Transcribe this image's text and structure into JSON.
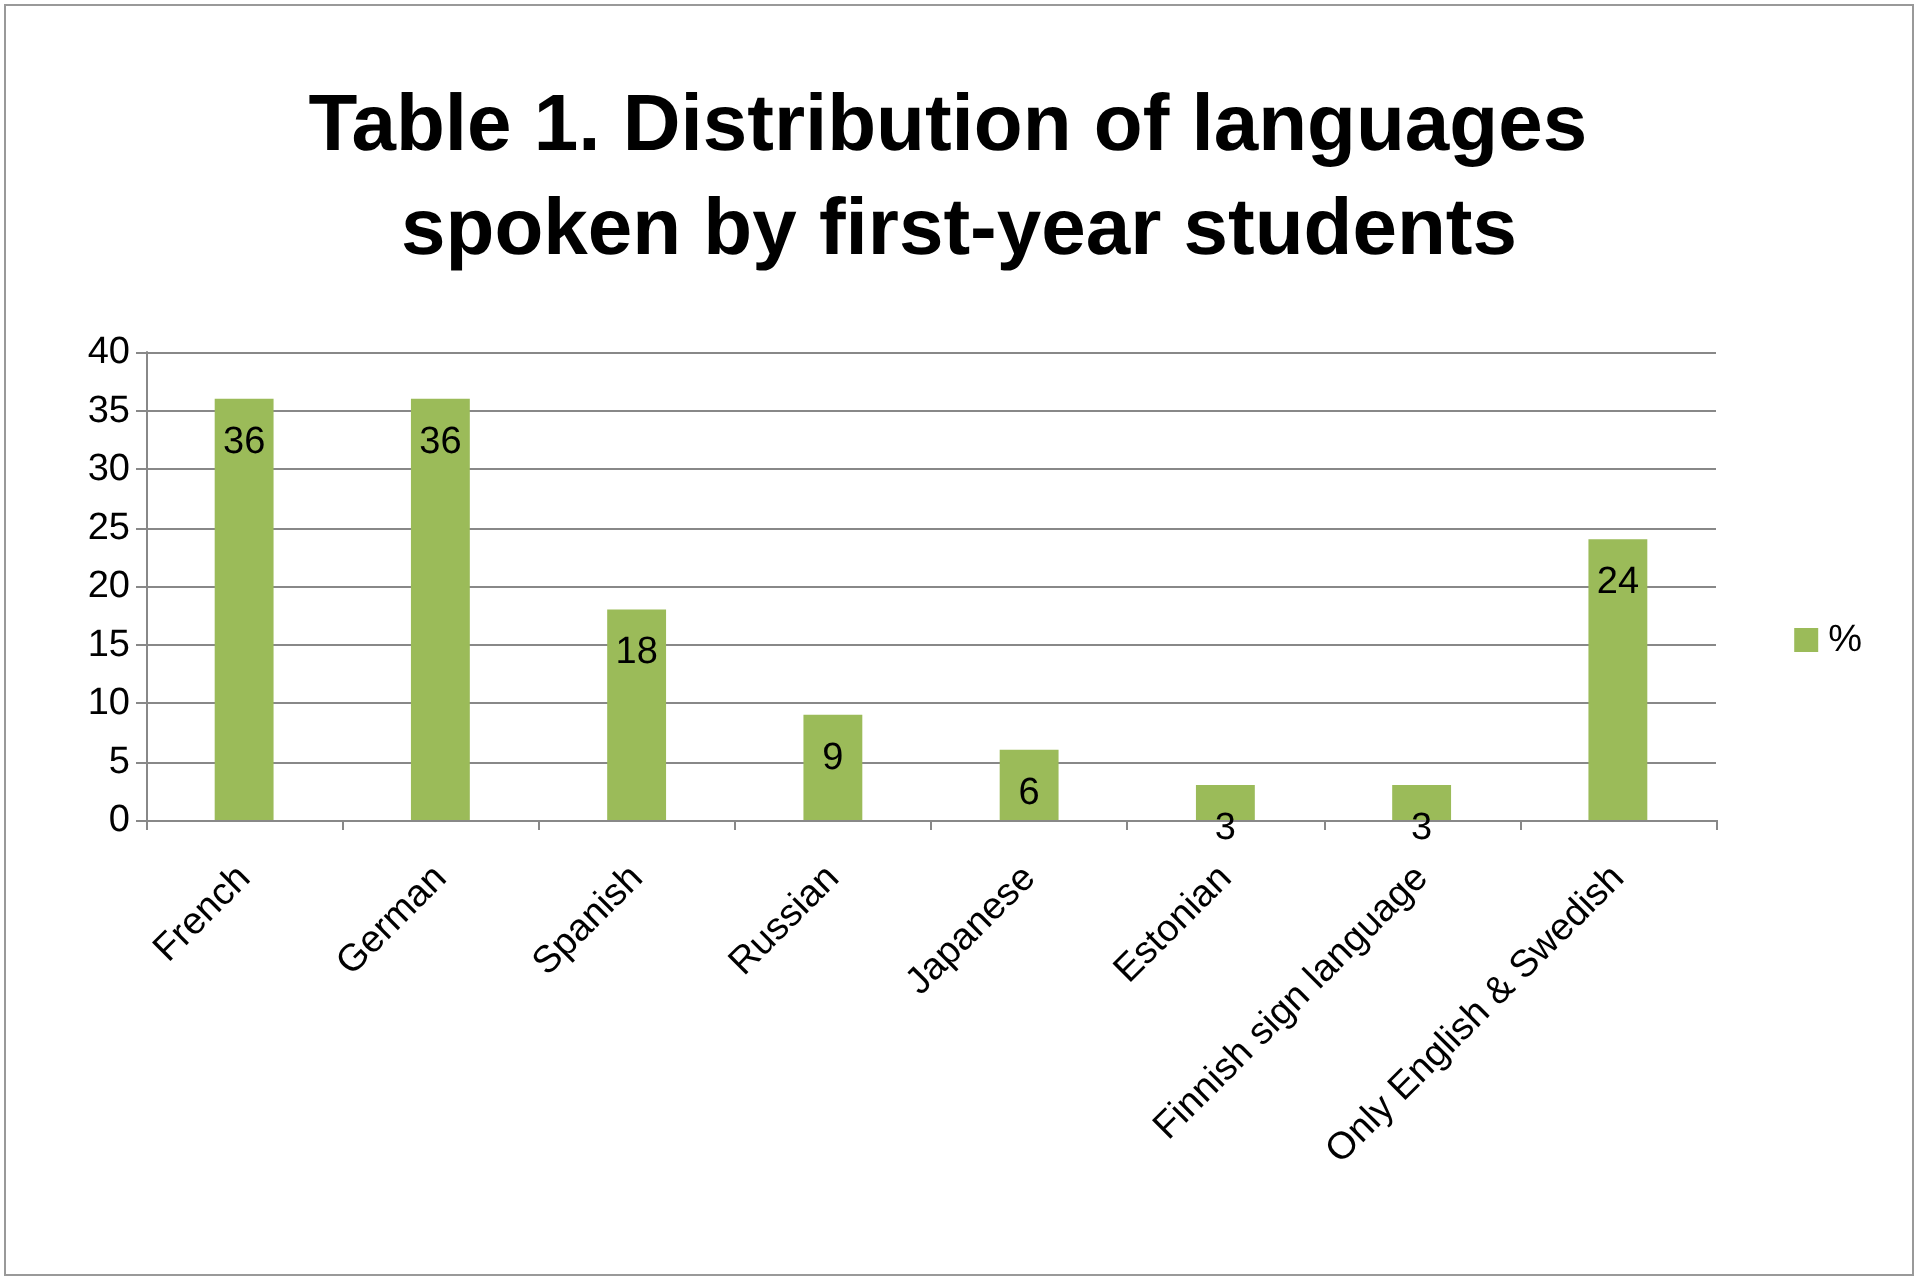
{
  "chart_data": {
    "type": "bar",
    "title": "Table 1. Distribution of languages spoken by first-year students",
    "categories": [
      "French",
      "German",
      "Spanish",
      "Russian",
      "Japanese",
      "Estonian",
      "Finnish sign language",
      "Only English & Swedish"
    ],
    "series": [
      {
        "name": "%",
        "color": "#9bbb59",
        "values": [
          36,
          36,
          18,
          9,
          6,
          3,
          3,
          24
        ]
      }
    ],
    "ylim": [
      0,
      40
    ],
    "yticks": [
      0,
      5,
      10,
      15,
      20,
      25,
      30,
      35,
      40
    ],
    "grid": "y",
    "legend": "right",
    "data_labels": true
  }
}
